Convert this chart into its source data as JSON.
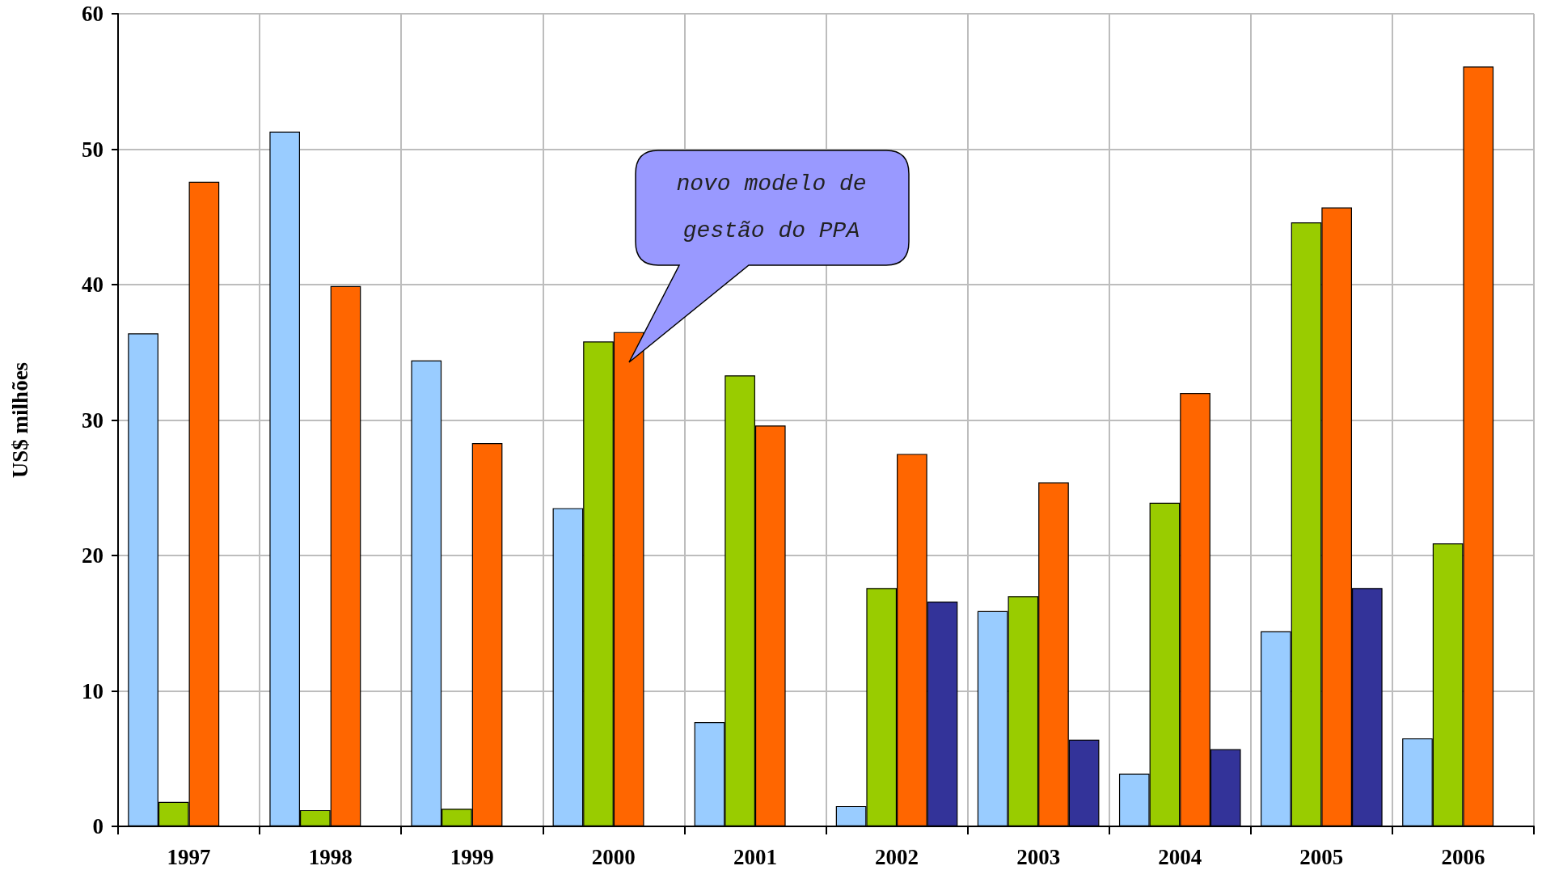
{
  "chart_data": {
    "type": "bar",
    "categories": [
      "1997",
      "1998",
      "1999",
      "2000",
      "2001",
      "2002",
      "2003",
      "2004",
      "2005",
      "2006"
    ],
    "series": [
      {
        "color": "#99ccff",
        "values": [
          36.4,
          51.3,
          34.4,
          23.5,
          7.7,
          1.5,
          15.9,
          3.9,
          14.4,
          6.5
        ]
      },
      {
        "color": "#99cc00",
        "values": [
          1.8,
          1.2,
          1.3,
          35.8,
          33.3,
          17.6,
          17.0,
          23.9,
          44.6,
          20.9
        ]
      },
      {
        "color": "#ff6600",
        "values": [
          47.6,
          39.9,
          28.3,
          36.5,
          29.6,
          27.5,
          25.4,
          32.0,
          45.7,
          56.1
        ]
      },
      {
        "color": "#333399",
        "values": [
          null,
          null,
          null,
          null,
          null,
          16.6,
          6.4,
          5.7,
          17.6,
          null
        ]
      }
    ],
    "ylabel": "US$ milhões",
    "ylim": [
      0,
      60
    ],
    "yticks": [
      0,
      10,
      20,
      30,
      40,
      50,
      60
    ],
    "grid": true,
    "annotations": [
      "novo modelo de gestão do PPA"
    ]
  }
}
